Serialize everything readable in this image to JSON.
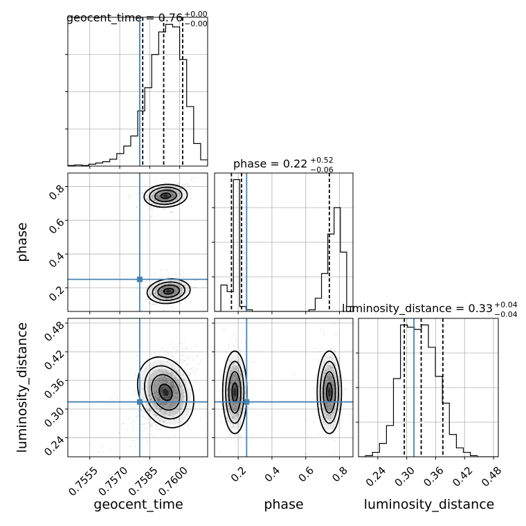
{
  "chart_data": {
    "type": "scatter",
    "subtype": "corner-plot",
    "parameters": [
      {
        "key": "geocent_time",
        "axis_label": "geocent_time",
        "title_prefix": "geocent_time = ",
        "title_value": "0.76",
        "title_plus": "+0.00",
        "title_minus": "−0.00",
        "range": [
          0.7544,
          0.7614
        ],
        "ticks": [
          0.7555,
          0.757,
          0.7585,
          0.76
        ],
        "tick_labels": [
          "0.7555",
          "0.7570",
          "0.7585",
          "0.7600"
        ],
        "truth": 0.758,
        "quantiles": [
          0.75815,
          0.7592,
          0.76015
        ],
        "hist_edges": [
          0.7544,
          0.7614
        ],
        "hist_counts": [
          1,
          2,
          1,
          3,
          5,
          7,
          11,
          20,
          32,
          48,
          88,
          125,
          178,
          214,
          226,
          222,
          170,
          95,
          36,
          10
        ]
      },
      {
        "key": "phase",
        "axis_label": "phase",
        "title_prefix": "phase = ",
        "title_value": "0.22",
        "title_plus": "+0.52",
        "title_minus": "−0.06",
        "range": [
          0.06,
          0.88
        ],
        "ticks": [
          0.2,
          0.4,
          0.6,
          0.8
        ],
        "tick_labels": [
          "0.2",
          "0.4",
          "0.6",
          "0.8"
        ],
        "truth": 0.25,
        "quantiles": [
          0.16,
          0.22,
          0.74
        ],
        "hist_edges": [
          0.06,
          0.88
        ],
        "hist_counts": [
          0,
          16,
          12,
          80,
          3,
          1,
          0,
          0,
          0,
          0,
          0,
          0,
          0,
          0,
          0,
          1,
          8,
          23,
          47,
          63,
          36,
          3
        ]
      },
      {
        "key": "luminosity_distance",
        "axis_label": "luminosity_distance",
        "title_prefix": "luminosity_distance = ",
        "title_value": "0.33",
        "title_plus": "+0.04",
        "title_minus": "−0.04",
        "range": [
          0.2,
          0.49
        ],
        "ticks": [
          0.24,
          0.3,
          0.36,
          0.42,
          0.48
        ],
        "tick_labels": [
          "0.24",
          "0.30",
          "0.36",
          "0.42",
          "0.48"
        ],
        "truth": 0.315,
        "quantiles": [
          0.295,
          0.33,
          0.375
        ],
        "hist_edges": [
          0.2,
          0.49
        ],
        "hist_counts": [
          0,
          1,
          4,
          12,
          28,
          70,
          118,
          116,
          114,
          118,
          98,
          72,
          48,
          20,
          8,
          4,
          1,
          0,
          0,
          0
        ]
      }
    ],
    "joint_modes": [
      {
        "x": "geocent_time",
        "y": "phase",
        "cx": 0.7593,
        "cy": 0.745,
        "sx": 0.00045,
        "sy": 0.028,
        "rho": 0.2,
        "weight": 0.5
      },
      {
        "x": "geocent_time",
        "y": "phase",
        "cx": 0.75945,
        "cy": 0.18,
        "sx": 0.00045,
        "sy": 0.03,
        "rho": 0.3,
        "weight": 0.5
      },
      {
        "x": "geocent_time",
        "y": "luminosity_distance",
        "cx": 0.7593,
        "cy": 0.335,
        "sx": 0.00055,
        "sy": 0.032,
        "rho": 0.55,
        "weight": 1.0
      },
      {
        "x": "phase",
        "y": "luminosity_distance",
        "cx": 0.18,
        "cy": 0.335,
        "sx": 0.03,
        "sy": 0.036,
        "rho": 0.0,
        "weight": 0.55
      },
      {
        "x": "phase",
        "y": "luminosity_distance",
        "cx": 0.74,
        "cy": 0.335,
        "sx": 0.03,
        "sy": 0.036,
        "rho": 0.0,
        "weight": 0.45
      }
    ],
    "colors": {
      "truth": "#4682b4",
      "contour": "#000000",
      "points": "#9a9a9a",
      "grid": "#b0b0b0",
      "quantile": "#000000"
    },
    "grid": true
  }
}
